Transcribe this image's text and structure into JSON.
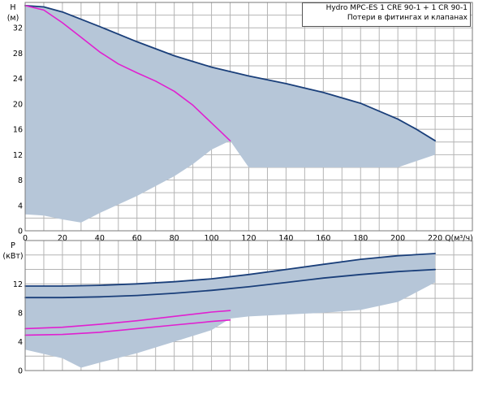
{
  "legend": {
    "line1": "Hydro MPC-ES 1 CRE 90-1  +  1 CR 90-1",
    "line2": "Потери в фитингах и клапанах"
  },
  "colors": {
    "navy": "#1a3f7a",
    "magenta": "#e020d0",
    "band": "#b6c6d8",
    "grid": "#b4b4b4",
    "frame": "#7a7a7a"
  },
  "chart_data": [
    {
      "type": "line",
      "ylabel_symbol": "H",
      "ylabel_unit": "(м)",
      "xlabel": "Q(м³/ч)",
      "x_ticks": [
        0,
        20,
        40,
        60,
        80,
        100,
        120,
        140,
        160,
        180,
        200,
        220
      ],
      "x_tick_labels": [
        "0",
        "20",
        "40",
        "60",
        "80",
        "100",
        "120",
        "140",
        "160",
        "180",
        "200",
        "220"
      ],
      "y_ticks": [
        0,
        4,
        8,
        12,
        16,
        20,
        24,
        28,
        32
      ],
      "y_tick_labels": [
        "0",
        "4",
        "8",
        "12",
        "16",
        "20",
        "24",
        "28",
        "32"
      ],
      "xlim": [
        0,
        240
      ],
      "ylim": [
        0,
        36
      ],
      "series": [
        {
          "color": "navy",
          "x": [
            0,
            10,
            20,
            40,
            60,
            80,
            100,
            120,
            140,
            160,
            180,
            200,
            210,
            220
          ],
          "y": [
            35.5,
            35.3,
            34.5,
            32.2,
            29.8,
            27.6,
            25.8,
            24.4,
            23.2,
            21.8,
            20.1,
            17.6,
            16.0,
            14.2
          ]
        },
        {
          "color": "magenta",
          "x": [
            0,
            10,
            20,
            30,
            40,
            50,
            60,
            70,
            80,
            90,
            100,
            105,
            110
          ],
          "y": [
            35.5,
            34.8,
            32.8,
            30.5,
            28.2,
            26.3,
            24.9,
            23.6,
            22.0,
            19.8,
            17.0,
            15.6,
            14.2
          ]
        }
      ],
      "band": {
        "upper": [
          [
            0,
            35.5
          ],
          [
            10,
            35.3
          ],
          [
            20,
            34.5
          ],
          [
            40,
            32.2
          ],
          [
            60,
            29.8
          ],
          [
            80,
            27.6
          ],
          [
            100,
            25.8
          ],
          [
            120,
            24.4
          ],
          [
            140,
            23.2
          ],
          [
            160,
            21.8
          ],
          [
            180,
            20.1
          ],
          [
            200,
            17.6
          ],
          [
            210,
            16.0
          ],
          [
            220,
            14.2
          ]
        ],
        "lower": [
          [
            220,
            12
          ],
          [
            200,
            10
          ],
          [
            120,
            10
          ],
          [
            110,
            14.2
          ],
          [
            100,
            12.8
          ],
          [
            90,
            10.5
          ],
          [
            80,
            8.6
          ],
          [
            60,
            5.5
          ],
          [
            40,
            2.8
          ],
          [
            30,
            1.3
          ],
          [
            20,
            1.8
          ],
          [
            10,
            2.4
          ],
          [
            0,
            2.6
          ]
        ]
      }
    },
    {
      "type": "line",
      "ylabel_symbol": "P",
      "ylabel_unit": "(кВт)",
      "y_ticks": [
        0,
        4,
        8,
        12
      ],
      "y_tick_labels": [
        "0",
        "4",
        "8",
        "12"
      ],
      "x_ticks": [
        0,
        20,
        40,
        60,
        80,
        100,
        120,
        140,
        160,
        180,
        200,
        220
      ],
      "xlim": [
        0,
        240
      ],
      "ylim": [
        0,
        18
      ],
      "series": [
        {
          "color": "navy",
          "x": [
            0,
            20,
            40,
            60,
            80,
            100,
            120,
            140,
            160,
            180,
            200,
            220
          ],
          "y": [
            11.7,
            11.7,
            11.8,
            12.0,
            12.3,
            12.7,
            13.3,
            14.0,
            14.7,
            15.4,
            15.9,
            16.2
          ]
        },
        {
          "color": "navy",
          "x": [
            0,
            20,
            40,
            60,
            80,
            100,
            120,
            140,
            160,
            180,
            200,
            220
          ],
          "y": [
            10.1,
            10.1,
            10.2,
            10.4,
            10.7,
            11.1,
            11.6,
            12.2,
            12.8,
            13.3,
            13.7,
            14.0
          ]
        },
        {
          "color": "magenta",
          "x": [
            0,
            20,
            40,
            60,
            80,
            100,
            110
          ],
          "y": [
            5.8,
            6.0,
            6.4,
            6.9,
            7.5,
            8.1,
            8.3
          ]
        },
        {
          "color": "magenta",
          "x": [
            0,
            20,
            40,
            60,
            80,
            100,
            110
          ],
          "y": [
            4.9,
            5.0,
            5.3,
            5.8,
            6.3,
            6.8,
            7.0
          ]
        }
      ],
      "band": {
        "upper": [
          [
            0,
            11.7
          ],
          [
            20,
            11.7
          ],
          [
            40,
            11.8
          ],
          [
            60,
            12.0
          ],
          [
            80,
            12.3
          ],
          [
            100,
            12.7
          ],
          [
            120,
            13.3
          ],
          [
            140,
            14.0
          ],
          [
            160,
            14.7
          ],
          [
            180,
            15.4
          ],
          [
            200,
            15.9
          ],
          [
            220,
            16.2
          ]
        ],
        "lower": [
          [
            220,
            12.2
          ],
          [
            200,
            9.5
          ],
          [
            180,
            8.4
          ],
          [
            160,
            8.0
          ],
          [
            120,
            7.5
          ],
          [
            110,
            7.2
          ],
          [
            100,
            5.6
          ],
          [
            80,
            4.0
          ],
          [
            60,
            2.4
          ],
          [
            40,
            1.1
          ],
          [
            30,
            0.4
          ],
          [
            20,
            1.7
          ],
          [
            0,
            2.9
          ]
        ]
      }
    }
  ]
}
